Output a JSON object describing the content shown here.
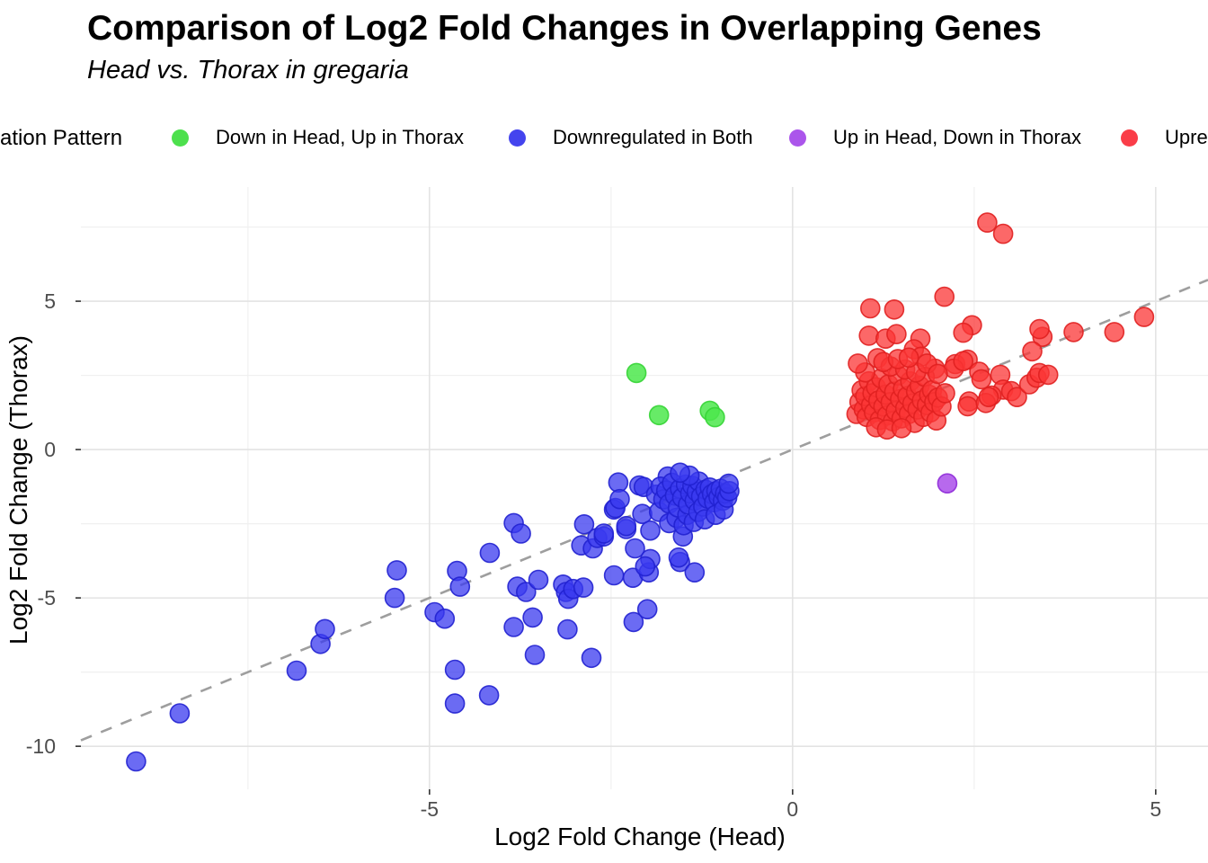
{
  "chart_data": {
    "type": "scatter",
    "title": "Comparison of Log2 Fold Changes in Overlapping Genes",
    "subtitle": "Head vs. Thorax in gregaria",
    "xlabel": "Log2 Fold Change (Head)",
    "ylabel": "Log2 Fold Change (Thorax)",
    "xlim": [
      -9.8,
      5.72
    ],
    "ylim": [
      -11.45,
      8.85
    ],
    "x_major_ticks": [
      -5,
      0,
      5
    ],
    "x_tick_labels": [
      "-5",
      "0",
      "5"
    ],
    "y_major_ticks": [
      5,
      0,
      -5,
      -10
    ],
    "y_tick_labels": [
      "5",
      "0",
      "-5",
      "-10"
    ],
    "x_minor_gridlines": [
      -7.5,
      -2.5,
      2.5
    ],
    "y_minor_gridlines": [
      7.5,
      2.5,
      -2.5,
      -7.5
    ],
    "grid": {
      "major_color": "#e3e3e3",
      "minor_color": "#f0f0f0"
    },
    "tick_label_color": "#4d4d4d",
    "axis_title_color": "#000000",
    "reference_line": {
      "type": "identity y = x",
      "style": "dashed",
      "color": "#9e9e9e",
      "from": [
        -9.8,
        -9.8
      ],
      "to": [
        5.72,
        5.72
      ]
    },
    "legend": {
      "position": "top",
      "title": "ation Pattern",
      "clipped_at_edges": true,
      "items": [
        {
          "label": "Down in Head, Up in Thorax",
          "color": "#4de04d"
        },
        {
          "label": "Downregulated in Both",
          "color": "#4444ee"
        },
        {
          "label": "Up in Head, Down in Thorax",
          "color": "#ab55eb"
        },
        {
          "label": "Upre",
          "color": "#fa3d48"
        }
      ]
    },
    "series": [
      {
        "name": "Down in Head, Up in Thorax",
        "fill": "#4ce84c",
        "stroke": "#35d435",
        "fill_opacity": 0.85,
        "points": [
          [
            -2.15,
            2.58
          ],
          [
            -1.84,
            1.16
          ],
          [
            -1.14,
            1.31
          ],
          [
            -1.07,
            1.09
          ]
        ]
      },
      {
        "name": "Downregulated in Both",
        "fill": "#3a3aef",
        "stroke": "#2121d0",
        "fill_opacity": 0.75,
        "points": [
          [
            -9.04,
            -10.51
          ],
          [
            -8.44,
            -8.89
          ],
          [
            -6.83,
            -7.45
          ],
          [
            -6.5,
            -6.55
          ],
          [
            -6.44,
            -6.05
          ],
          [
            -5.48,
            -5.0
          ],
          [
            -5.45,
            -4.07
          ],
          [
            -4.93,
            -5.48
          ],
          [
            -4.79,
            -5.7
          ],
          [
            -4.65,
            -7.42
          ],
          [
            -4.65,
            -8.56
          ],
          [
            -4.18,
            -8.28
          ],
          [
            -4.62,
            -4.09
          ],
          [
            -4.58,
            -4.62
          ],
          [
            -4.17,
            -3.48
          ],
          [
            -3.84,
            -2.48
          ],
          [
            -3.74,
            -2.83
          ],
          [
            -3.79,
            -4.62
          ],
          [
            -3.67,
            -4.8
          ],
          [
            -3.5,
            -4.39
          ],
          [
            -3.58,
            -5.66
          ],
          [
            -3.84,
            -5.98
          ],
          [
            -3.55,
            -6.92
          ],
          [
            -3.1,
            -6.06
          ],
          [
            -2.77,
            -7.02
          ],
          [
            -3.16,
            -4.55
          ],
          [
            -3.12,
            -4.8
          ],
          [
            -3.09,
            -5.03
          ],
          [
            -3.02,
            -4.7
          ],
          [
            -2.88,
            -4.65
          ],
          [
            -2.46,
            -4.24
          ],
          [
            -2.2,
            -4.32
          ],
          [
            -2.19,
            -5.81
          ],
          [
            -2.0,
            -5.38
          ],
          [
            -1.98,
            -4.14
          ],
          [
            -1.96,
            -3.69
          ],
          [
            -2.03,
            -3.94
          ],
          [
            -1.55,
            -3.79
          ],
          [
            -1.35,
            -4.14
          ],
          [
            -1.57,
            -3.64
          ],
          [
            -2.91,
            -3.23
          ],
          [
            -2.87,
            -2.52
          ],
          [
            -2.75,
            -3.33
          ],
          [
            -2.69,
            -2.98
          ],
          [
            -2.6,
            -2.93
          ],
          [
            -2.6,
            -2.83
          ],
          [
            -2.46,
            -2.02
          ],
          [
            -2.44,
            -1.97
          ],
          [
            -2.4,
            -1.11
          ],
          [
            -2.38,
            -1.67
          ],
          [
            -2.29,
            -2.68
          ],
          [
            -2.29,
            -2.58
          ],
          [
            -2.17,
            -3.33
          ],
          [
            -2.11,
            -1.21
          ],
          [
            -2.07,
            -2.17
          ],
          [
            -2.05,
            -1.26
          ],
          [
            -1.96,
            -2.73
          ],
          [
            -1.72,
            -0.91
          ],
          [
            -1.51,
            -2.93
          ],
          [
            -1.88,
            -1.52
          ],
          [
            -1.84,
            -2.1
          ],
          [
            -1.82,
            -1.25
          ],
          [
            -1.78,
            -1.68
          ],
          [
            -1.74,
            -1.38
          ],
          [
            -1.7,
            -1.82
          ],
          [
            -1.7,
            -2.48
          ],
          [
            -1.66,
            -1.12
          ],
          [
            -1.62,
            -1.55
          ],
          [
            -1.6,
            -2.3
          ],
          [
            -1.58,
            -1.95
          ],
          [
            -1.55,
            -1.32
          ],
          [
            -1.52,
            -1.62
          ],
          [
            -1.5,
            -2.55
          ],
          [
            -1.47,
            -1.18
          ],
          [
            -1.45,
            -2.2
          ],
          [
            -1.44,
            -1.85
          ],
          [
            -1.41,
            -1.48
          ],
          [
            -1.38,
            -1.22
          ],
          [
            -1.36,
            -2.44
          ],
          [
            -1.35,
            -1.72
          ],
          [
            -1.32,
            -1.42
          ],
          [
            -1.3,
            -2.1
          ],
          [
            -1.29,
            -1.08
          ],
          [
            -1.26,
            -1.58
          ],
          [
            -1.23,
            -1.92
          ],
          [
            -1.21,
            -2.35
          ],
          [
            -1.2,
            -1.35
          ],
          [
            -1.17,
            -1.65
          ],
          [
            -1.14,
            -1.28
          ],
          [
            -1.11,
            -1.5
          ],
          [
            -1.08,
            -1.78
          ],
          [
            -1.06,
            -2.2
          ],
          [
            -1.05,
            -1.4
          ],
          [
            -1.02,
            -1.6
          ],
          [
            -0.99,
            -1.32
          ],
          [
            -0.96,
            -1.72
          ],
          [
            -0.95,
            -2.02
          ],
          [
            -0.93,
            -1.48
          ],
          [
            -0.9,
            -1.62
          ],
          [
            -0.87,
            -1.4
          ],
          [
            -0.88,
            -1.15
          ],
          [
            -1.42,
            -0.88
          ],
          [
            -1.55,
            -0.78
          ]
        ]
      },
      {
        "name": "Up in Head, Down in Thorax",
        "fill": "#aa4fea",
        "stroke": "#8f2bd8",
        "fill_opacity": 0.85,
        "points": [
          [
            2.13,
            -1.14
          ]
        ]
      },
      {
        "name": "Upre",
        "fill": "#fb3535",
        "stroke": "#e02020",
        "fill_opacity": 0.75,
        "points": [
          [
            2.68,
            7.65
          ],
          [
            2.9,
            7.27
          ],
          [
            2.09,
            5.15
          ],
          [
            1.07,
            4.76
          ],
          [
            1.4,
            4.72
          ],
          [
            4.84,
            4.47
          ],
          [
            4.43,
            3.96
          ],
          [
            3.87,
            3.96
          ],
          [
            3.44,
            3.8
          ],
          [
            3.4,
            4.06
          ],
          [
            3.3,
            3.31
          ],
          [
            2.47,
            4.19
          ],
          [
            2.35,
            3.94
          ],
          [
            1.05,
            3.84
          ],
          [
            1.28,
            3.74
          ],
          [
            1.43,
            3.89
          ],
          [
            1.76,
            3.74
          ],
          [
            1.17,
            3.08
          ],
          [
            1.67,
            3.38
          ],
          [
            1.77,
            3.13
          ],
          [
            1.96,
            2.73
          ],
          [
            2.24,
            2.88
          ],
          [
            2.41,
            3.03
          ],
          [
            2.57,
            2.62
          ],
          [
            2.6,
            2.37
          ],
          [
            2.86,
            2.52
          ],
          [
            2.9,
            2.02
          ],
          [
            2.74,
            1.82
          ],
          [
            3.01,
            1.97
          ],
          [
            3.09,
            1.77
          ],
          [
            3.26,
            2.2
          ],
          [
            3.36,
            2.42
          ],
          [
            3.4,
            2.58
          ],
          [
            3.52,
            2.52
          ],
          [
            2.43,
            1.62
          ],
          [
            2.41,
            1.46
          ],
          [
            2.66,
            1.57
          ],
          [
            2.7,
            1.77
          ],
          [
            2.22,
            2.73
          ],
          [
            2.35,
            2.98
          ],
          [
            0.88,
            1.2
          ],
          [
            0.92,
            1.6
          ],
          [
            0.95,
            2.0
          ],
          [
            0.98,
            1.35
          ],
          [
            1.0,
            1.8
          ],
          [
            1.02,
            1.1
          ],
          [
            1.05,
            2.3
          ],
          [
            1.08,
            1.5
          ],
          [
            1.1,
            1.9
          ],
          [
            1.12,
            1.25
          ],
          [
            1.15,
            2.1
          ],
          [
            1.18,
            1.65
          ],
          [
            1.2,
            1.0
          ],
          [
            1.22,
            2.4
          ],
          [
            1.25,
            1.45
          ],
          [
            1.28,
            1.85
          ],
          [
            1.3,
            1.15
          ],
          [
            1.32,
            2.2
          ],
          [
            1.35,
            1.6
          ],
          [
            1.38,
            0.95
          ],
          [
            1.4,
            1.95
          ],
          [
            1.42,
            1.3
          ],
          [
            1.45,
            2.5
          ],
          [
            1.48,
            1.7
          ],
          [
            1.5,
            1.05
          ],
          [
            1.52,
            2.05
          ],
          [
            1.55,
            1.4
          ],
          [
            1.58,
            1.8
          ],
          [
            1.6,
            1.2
          ],
          [
            1.62,
            2.3
          ],
          [
            1.65,
            1.55
          ],
          [
            1.68,
            0.9
          ],
          [
            1.7,
            1.95
          ],
          [
            1.72,
            1.35
          ],
          [
            1.75,
            2.15
          ],
          [
            1.78,
            1.65
          ],
          [
            1.8,
            1.1
          ],
          [
            1.82,
            2.45
          ],
          [
            1.85,
            1.5
          ],
          [
            1.88,
            1.85
          ],
          [
            1.9,
            1.25
          ],
          [
            1.92,
            2.0
          ],
          [
            1.95,
            1.6
          ],
          [
            1.98,
            0.98
          ],
          [
            2.0,
            1.75
          ],
          [
            2.05,
            1.45
          ],
          [
            2.1,
            1.9
          ],
          [
            1.15,
            0.75
          ],
          [
            1.3,
            0.68
          ],
          [
            1.5,
            0.72
          ],
          [
            1.35,
            2.8
          ],
          [
            1.55,
            2.7
          ],
          [
            1.0,
            2.6
          ],
          [
            1.7,
            2.6
          ],
          [
            1.25,
            2.95
          ],
          [
            1.45,
            3.05
          ],
          [
            0.9,
            2.9
          ],
          [
            1.6,
            3.1
          ],
          [
            1.85,
            2.9
          ],
          [
            2.0,
            2.55
          ]
        ]
      }
    ]
  }
}
